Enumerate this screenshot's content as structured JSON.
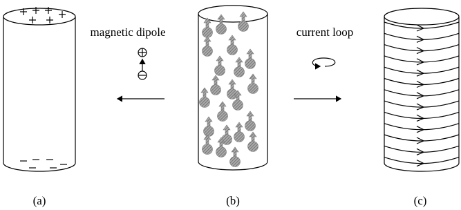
{
  "labels": {
    "dipole": "magnetic dipole",
    "loop": "current loop"
  },
  "captions": [
    "(a)",
    "(b)",
    "(c)"
  ]
}
